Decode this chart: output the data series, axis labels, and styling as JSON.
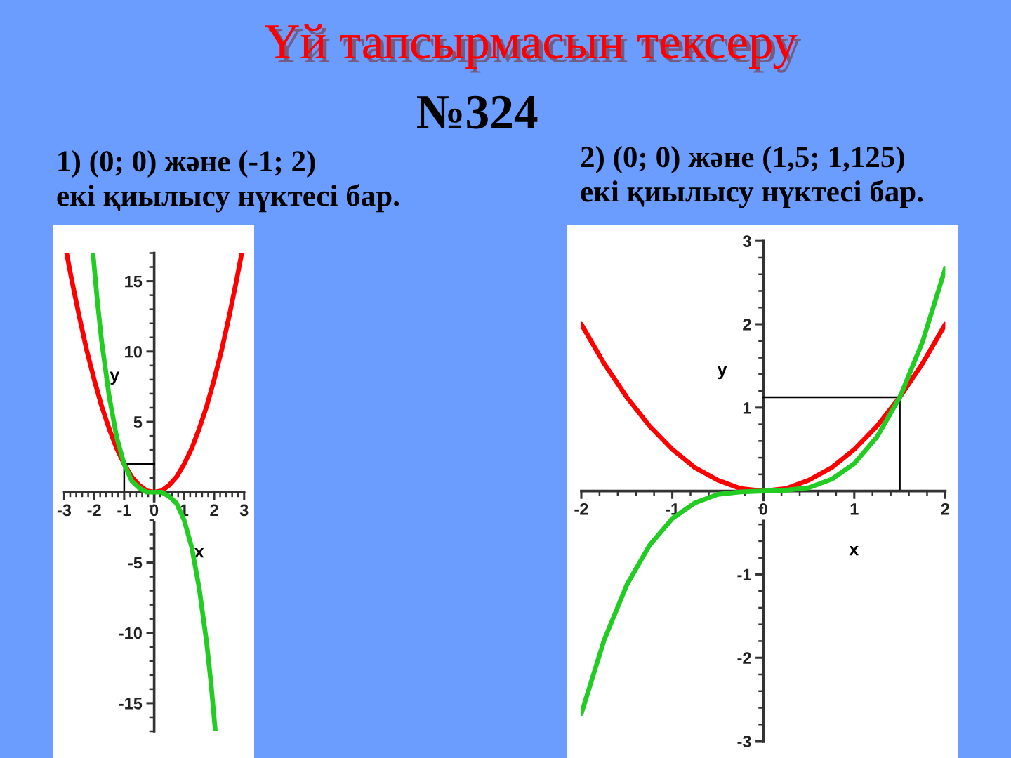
{
  "chart_data": [
    {
      "type": "line",
      "title": "Үй тапсырмасын тексеру",
      "annotations": [
        "№324",
        "1) (0; 0) және (-1; 2)\nекі қиылысу нүктесі бар."
      ],
      "xlabel": "x",
      "ylabel": "y",
      "xlim": [
        -3,
        3
      ],
      "ylim": [
        -17,
        17
      ],
      "xticks": [
        -3,
        {
          "value": -2.8,
          "label": null
        },
        {
          "value": -2.6,
          "label": null
        },
        {
          "value": -2.4,
          "label": null
        },
        {
          "value": -2.2,
          "label": null
        },
        -2,
        {
          "value": -1.8,
          "label": null
        },
        {
          "value": -1.6,
          "label": null
        },
        {
          "value": -1.4,
          "label": null
        },
        {
          "value": -1.2,
          "label": null
        },
        -1,
        {
          "value": -0.8,
          "label": null
        },
        {
          "value": -0.6,
          "label": null
        },
        {
          "value": -0.4,
          "label": null
        },
        {
          "value": -0.2,
          "label": null
        },
        0,
        {
          "value": 0.2,
          "label": null
        },
        {
          "value": 0.4,
          "label": null
        },
        {
          "value": 0.6,
          "label": null
        },
        {
          "value": 0.8,
          "label": null
        },
        1,
        {
          "value": 1.2,
          "label": null
        },
        {
          "value": 1.4,
          "label": null
        },
        {
          "value": 1.6,
          "label": null
        },
        {
          "value": 1.8,
          "label": null
        },
        2,
        {
          "value": 2.2,
          "label": null
        },
        {
          "value": 2.4,
          "label": null
        },
        {
          "value": 2.6,
          "label": null
        },
        {
          "value": 2.8,
          "label": null
        },
        3
      ],
      "yticks": [
        {
          "value": -17,
          "label": null
        },
        {
          "value": -16,
          "label": null
        },
        -15,
        {
          "value": -14,
          "label": null
        },
        {
          "value": -13,
          "label": null
        },
        {
          "value": -12,
          "label": null
        },
        {
          "value": -11,
          "label": null
        },
        -10,
        {
          "value": -9,
          "label": null
        },
        {
          "value": -8,
          "label": null
        },
        {
          "value": -7,
          "label": null
        },
        {
          "value": -6,
          "label": null
        },
        -5,
        {
          "value": -4,
          "label": null
        },
        {
          "value": -3,
          "label": null
        },
        {
          "value": -2,
          "label": null
        },
        {
          "value": -1,
          "label": null
        },
        {
          "value": 0,
          "label": null
        },
        {
          "value": 1,
          "label": null
        },
        {
          "value": 2,
          "label": null
        },
        {
          "value": 3,
          "label": null
        },
        {
          "value": 4,
          "label": null
        },
        5,
        {
          "value": 6,
          "label": null
        },
        {
          "value": 7,
          "label": null
        },
        {
          "value": 8,
          "label": null
        },
        {
          "value": 9,
          "label": null
        },
        10,
        {
          "value": 11,
          "label": null
        },
        {
          "value": 12,
          "label": null
        },
        {
          "value": 13,
          "label": null
        },
        {
          "value": 14,
          "label": null
        },
        15,
        {
          "value": 16,
          "label": null
        },
        {
          "value": 17,
          "label": null
        }
      ],
      "series": [
        {
          "type": "line",
          "color": "#ff0000",
          "x": [
            -2.92,
            -2.75,
            -2.5,
            -2.25,
            -2,
            -1.75,
            -1.5,
            -1.25,
            -1,
            -0.75,
            -0.5,
            -0.25,
            0,
            0.25,
            0.5,
            0.75,
            1,
            1.25,
            1.5,
            1.75,
            2,
            2.25,
            2.5,
            2.75,
            2.92
          ],
          "values": [
            17,
            15.1,
            12.5,
            10.1,
            8,
            6.1,
            4.5,
            3.1,
            2,
            1.1,
            0.5,
            0.1,
            0,
            0.1,
            0.5,
            1.1,
            2,
            3.1,
            4.5,
            6.1,
            8,
            10.1,
            12.5,
            15.1,
            17
          ]
        },
        {
          "type": "line",
          "color": "#22cc22",
          "x": [
            -2.04,
            -1.9,
            -1.75,
            -1.5,
            -1.25,
            -1,
            -0.75,
            -0.5,
            -0.25,
            0,
            0.25,
            0.5,
            0.75,
            1,
            1.25,
            1.5,
            1.75,
            1.9,
            2.04
          ],
          "values": [
            17,
            13.7,
            10.7,
            6.8,
            3.9,
            2,
            0.8,
            0.3,
            0,
            0,
            0,
            -0.3,
            -0.8,
            -2,
            -3.9,
            -6.8,
            -10.7,
            -13.7,
            -17
          ]
        },
        {
          "type": "step",
          "color": "#000000",
          "x": [
            0,
            -1
          ],
          "values": [
            2,
            0
          ]
        }
      ]
    },
    {
      "type": "line",
      "annotations": [
        "2) (0; 0) және (1,5; 1,125)\nекі қиылысу нүктесі бар."
      ],
      "xlabel": "x",
      "ylabel": "y",
      "xlim": [
        -2,
        2
      ],
      "ylim": [
        -3,
        3
      ],
      "xticks": [
        -2,
        {
          "value": -1.8,
          "label": null
        },
        {
          "value": -1.6,
          "label": null
        },
        {
          "value": -1.4,
          "label": null
        },
        {
          "value": -1.2,
          "label": null
        },
        -1,
        {
          "value": -0.8,
          "label": null
        },
        {
          "value": -0.6,
          "label": null
        },
        {
          "value": -0.4,
          "label": null
        },
        {
          "value": -0.2,
          "label": null
        },
        0,
        {
          "value": 0.2,
          "label": null
        },
        {
          "value": 0.4,
          "label": null
        },
        {
          "value": 0.6,
          "label": null
        },
        {
          "value": 0.8,
          "label": null
        },
        1,
        {
          "value": 1.2,
          "label": null
        },
        {
          "value": 1.4,
          "label": null
        },
        {
          "value": 1.6,
          "label": null
        },
        {
          "value": 1.8,
          "label": null
        },
        2
      ],
      "yticks": [
        -3,
        {
          "value": -2.8,
          "label": null
        },
        {
          "value": -2.6,
          "label": null
        },
        {
          "value": -2.4,
          "label": null
        },
        {
          "value": -2.2,
          "label": null
        },
        -2,
        {
          "value": -1.8,
          "label": null
        },
        {
          "value": -1.6,
          "label": null
        },
        {
          "value": -1.4,
          "label": null
        },
        {
          "value": -1.2,
          "label": null
        },
        -1,
        {
          "value": -0.8,
          "label": null
        },
        {
          "value": -0.6,
          "label": null
        },
        {
          "value": -0.4,
          "label": null
        },
        {
          "value": -0.2,
          "label": null
        },
        {
          "value": 0,
          "label": null
        },
        {
          "value": 0.2,
          "label": null
        },
        {
          "value": 0.4,
          "label": null
        },
        {
          "value": 0.6,
          "label": null
        },
        {
          "value": 0.8,
          "label": null
        },
        1,
        {
          "value": 1.2,
          "label": null
        },
        {
          "value": 1.4,
          "label": null
        },
        {
          "value": 1.6,
          "label": null
        },
        {
          "value": 1.8,
          "label": null
        },
        2,
        {
          "value": 2.2,
          "label": null
        },
        {
          "value": 2.4,
          "label": null
        },
        {
          "value": 2.6,
          "label": null
        },
        {
          "value": 2.8,
          "label": null
        },
        3
      ],
      "series": [
        {
          "type": "line",
          "color": "#ff0000",
          "x": [
            -2,
            -1.75,
            -1.5,
            -1.25,
            -1,
            -0.75,
            -0.5,
            -0.25,
            0,
            0.25,
            0.5,
            0.75,
            1,
            1.25,
            1.5,
            1.75,
            2
          ],
          "values": [
            2,
            1.53,
            1.125,
            0.78,
            0.5,
            0.28,
            0.13,
            0.03,
            0,
            0.03,
            0.13,
            0.28,
            0.5,
            0.78,
            1.125,
            1.53,
            2
          ]
        },
        {
          "type": "line",
          "color": "#22cc22",
          "x": [
            -2,
            -1.75,
            -1.5,
            -1.25,
            -1,
            -0.75,
            -0.5,
            -0.25,
            0,
            0.25,
            0.5,
            0.75,
            1,
            1.25,
            1.5,
            1.75,
            2
          ],
          "values": [
            -2.67,
            -1.79,
            -1.125,
            -0.65,
            -0.33,
            -0.14,
            -0.04,
            -0.01,
            0,
            0.01,
            0.04,
            0.14,
            0.33,
            0.65,
            1.125,
            1.79,
            2.67
          ]
        },
        {
          "type": "step",
          "color": "#000000",
          "x": [
            0,
            1.5
          ],
          "values": [
            1.125,
            0
          ]
        }
      ]
    }
  ]
}
